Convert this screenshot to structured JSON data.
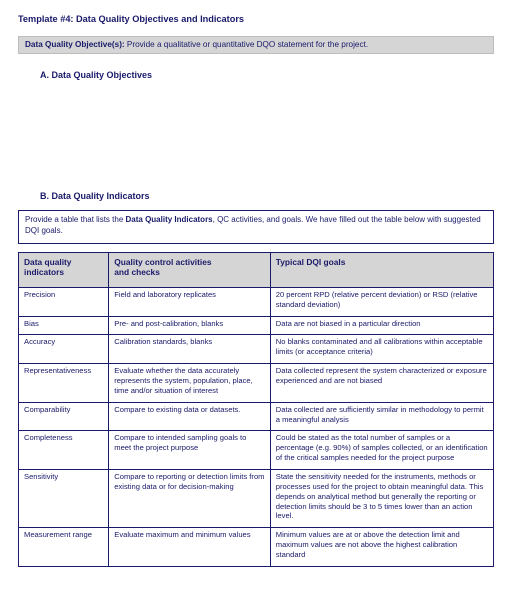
{
  "colors": {
    "text": "#1a1a6a",
    "header_bg": "#d5d5d5",
    "border": "#1a1a6a",
    "page_bg": "#ffffff"
  },
  "title": "Template #4: Data Quality Objectives and Indicators",
  "objective_bar": {
    "label": "Data Quality Objective(s):",
    "text": "  Provide a qualitative or quantitative DQO statement for the project."
  },
  "section_a": {
    "heading": "A.   Data Quality Objectives"
  },
  "section_b": {
    "heading": "B.   Data Quality Indicators"
  },
  "intro": {
    "pre": "Provide a table that lists the ",
    "bold": "Data Quality Indicators",
    "post": ", QC activities, and goals.  We have filled out the table below with suggested DQI goals."
  },
  "table": {
    "columns": [
      {
        "line1": "Data quality",
        "line2": "indicators"
      },
      {
        "line1": "Quality control activities",
        "line2": "and checks"
      },
      {
        "line1": "Typical DQI goals",
        "line2": ""
      }
    ],
    "rows": [
      {
        "indicator": "Precision",
        "qc": "Field and laboratory replicates",
        "goal": "20 percent RPD (relative percent deviation) or RSD (relative standard deviation)"
      },
      {
        "indicator": "Bias",
        "qc": "Pre- and post-calibration, blanks",
        "goal": "Data are not biased in a particular direction"
      },
      {
        "indicator": "Accuracy",
        "qc": "Calibration standards, blanks",
        "goal": "No blanks contaminated and all calibrations within acceptable limits (or acceptance criteria)"
      },
      {
        "indicator": "Representativeness",
        "qc": "Evaluate whether the data accurately represents the system, population, place, time and/or situation of interest",
        "goal": "Data collected represent the system characterized or exposure experienced and are not biased"
      },
      {
        "indicator": "Comparability",
        "qc": "Compare to existing data or datasets.",
        "goal": "Data collected are sufficiently similar in methodology to permit a meaningful analysis"
      },
      {
        "indicator": "Completeness",
        "qc": "Compare to intended sampling goals to meet the project purpose",
        "goal": "Could be stated as the total number of samples or a percentage (e.g. 90%) of samples collected, or an identification of the critical samples needed for the project purpose"
      },
      {
        "indicator": "Sensitivity",
        "qc": "Compare to reporting or detection limits from existing data or for decision-making",
        "goal": "State the sensitivity needed for the instruments, methods or processes used for the project to obtain meaningful data.  This depends on analytical method but generally the reporting or detection limits should be 3 to 5 times lower than an action level."
      },
      {
        "indicator": "Measurement range",
        "qc": "Evaluate maximum and minimum values",
        "goal": "Minimum values are at or above the detection limit and maximum values are not above the highest calibration standard"
      }
    ]
  }
}
